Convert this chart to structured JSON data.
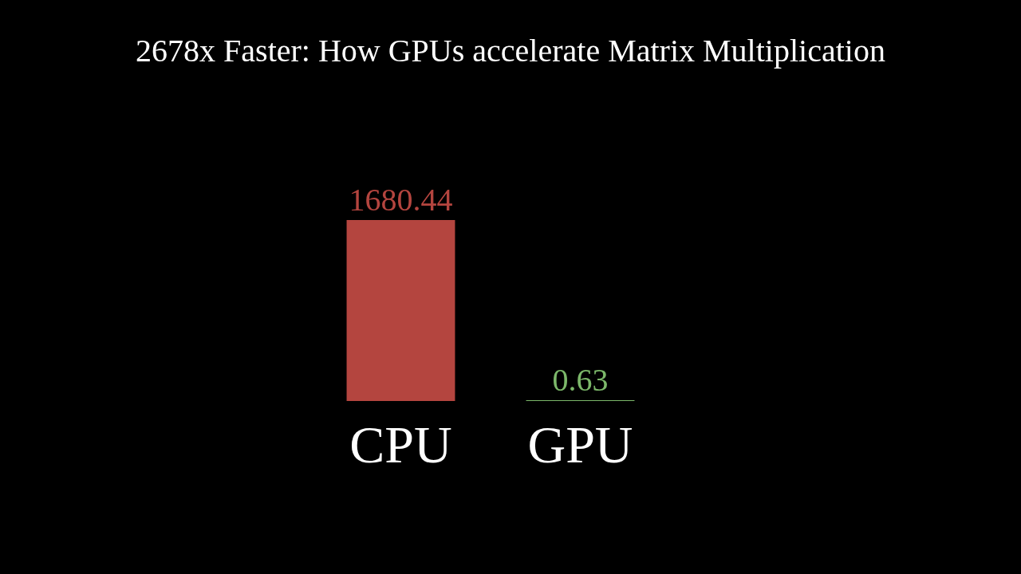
{
  "chart_data": {
    "type": "bar",
    "title": "2678x Faster: How GPUs accelerate Matrix Multiplication",
    "categories": [
      "CPU",
      "GPU"
    ],
    "values": [
      1680.44,
      0.63
    ],
    "colors": [
      "#b4453f",
      "#7cb86a"
    ],
    "data_labels": true
  }
}
